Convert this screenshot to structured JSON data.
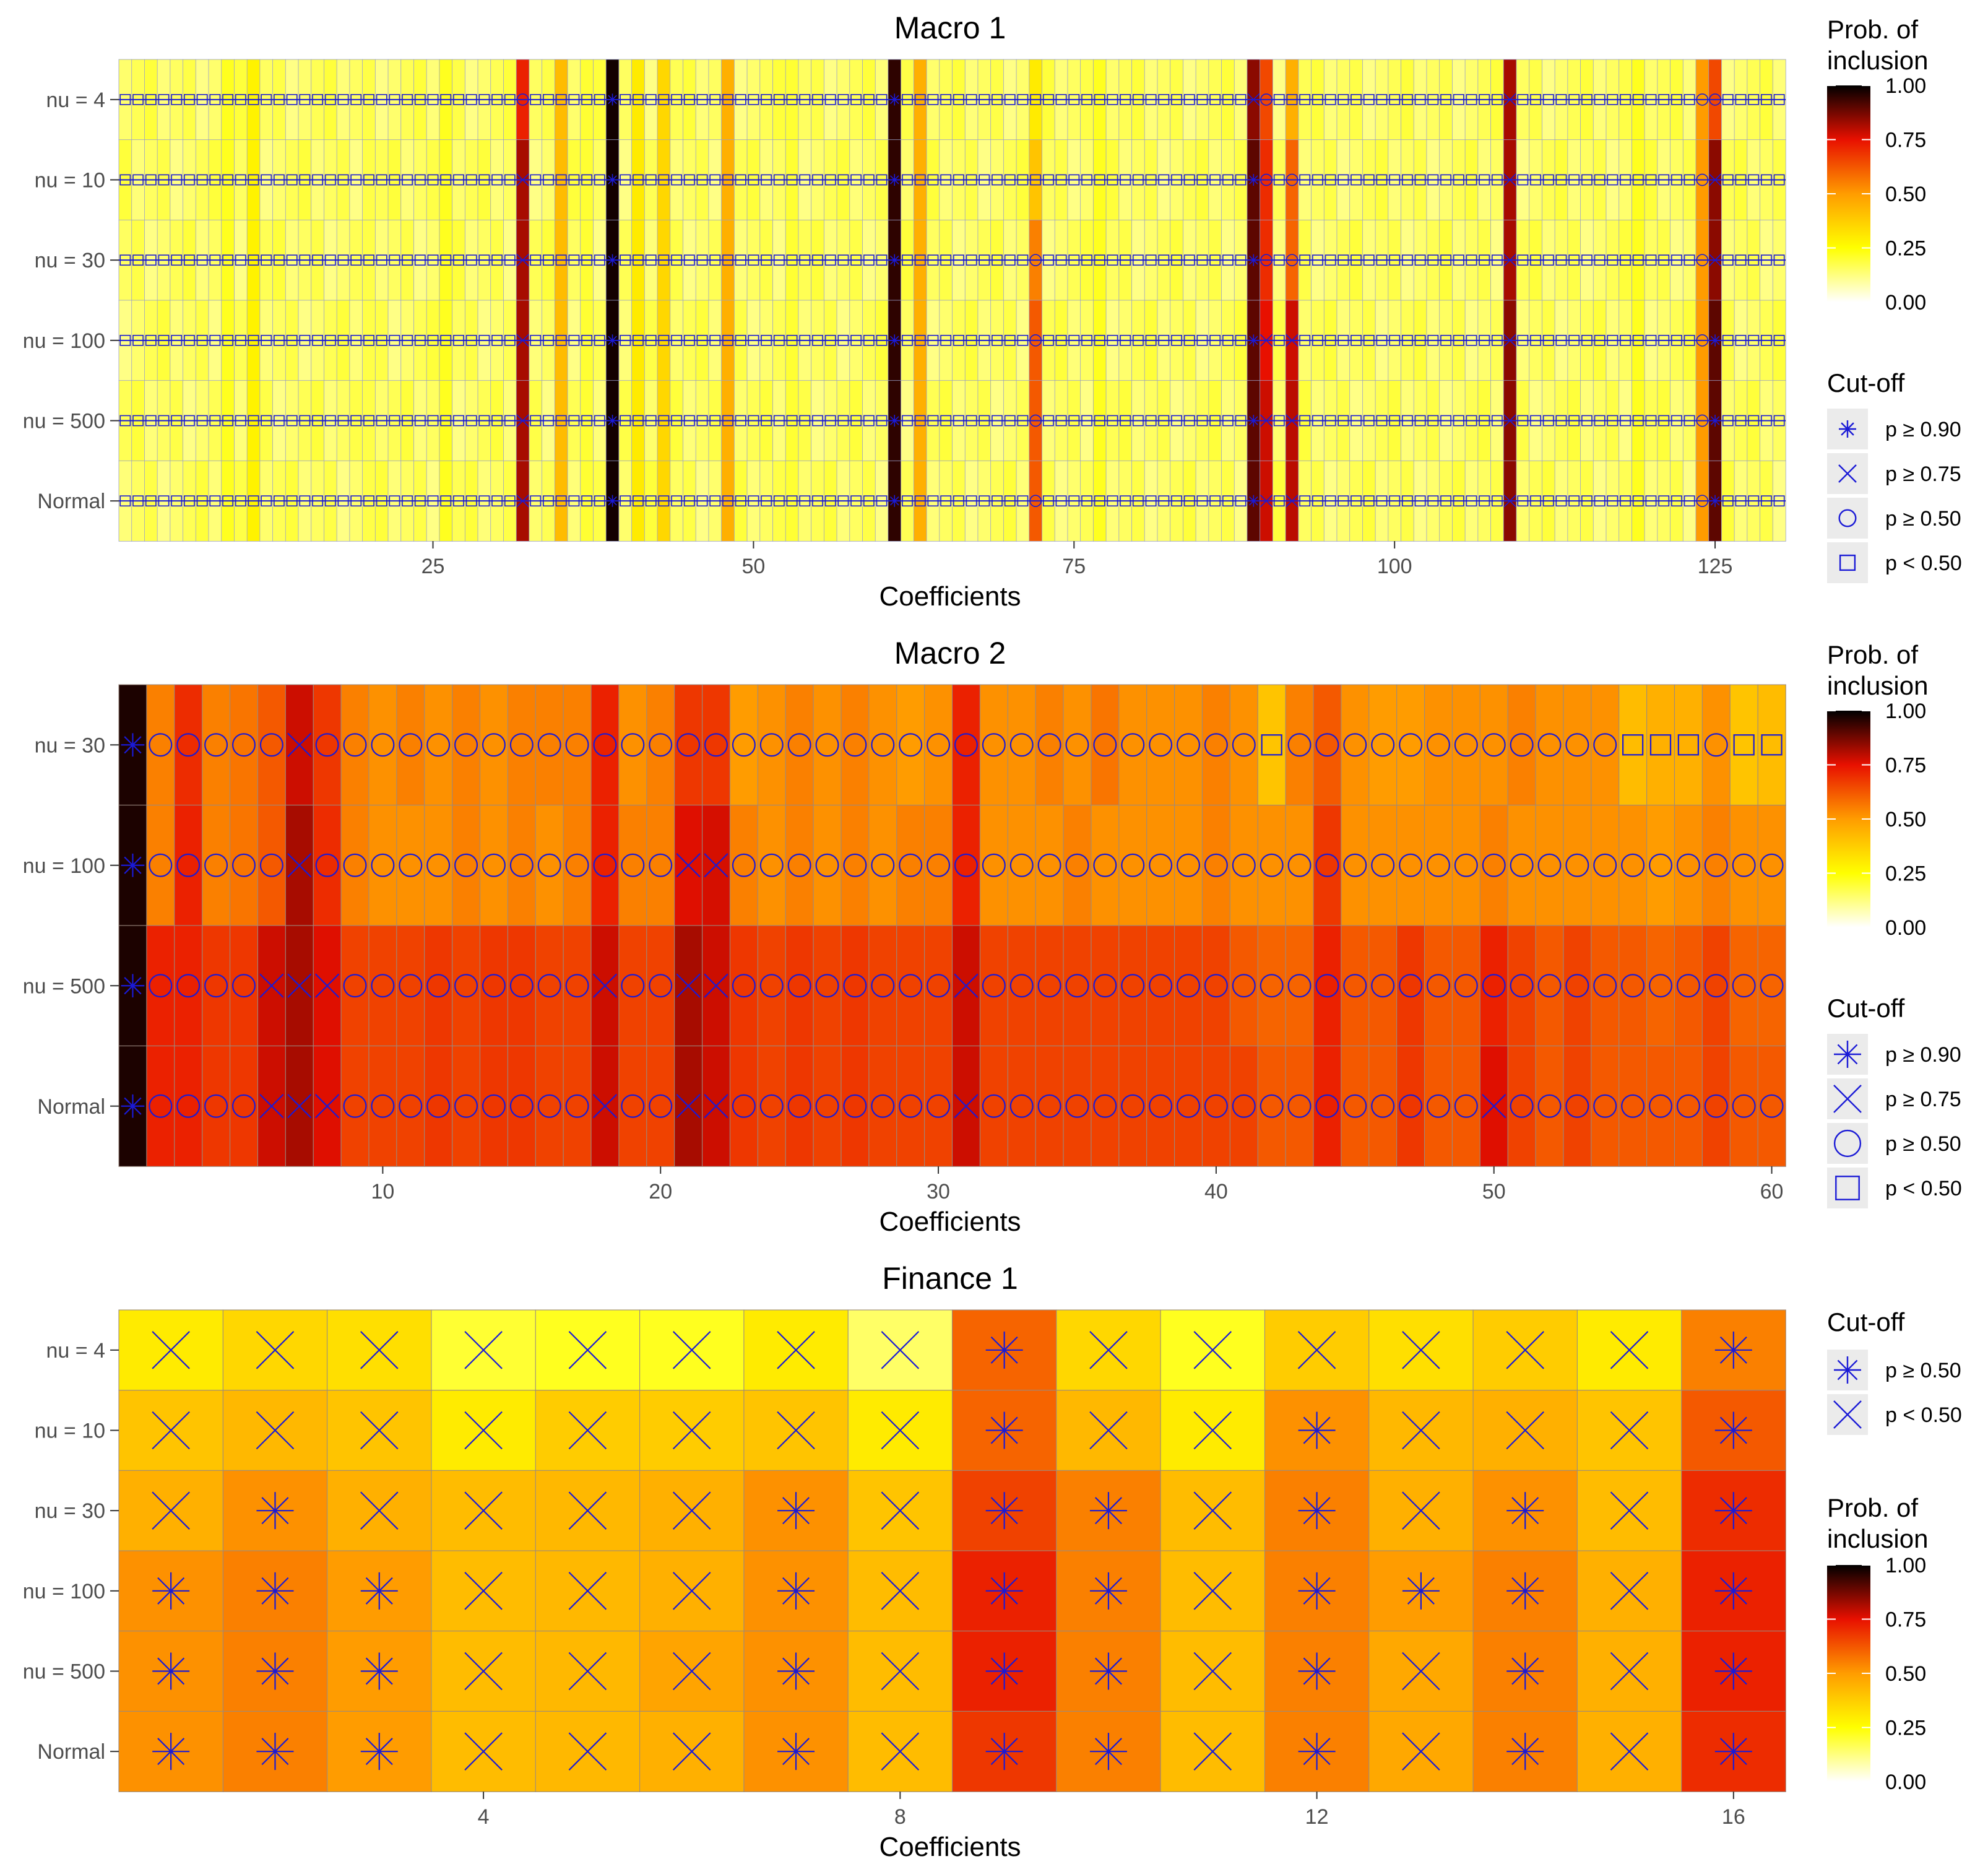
{
  "chart_data": [
    {
      "type": "heatmap",
      "title": "Macro 1",
      "xlabel": "Coefficients",
      "ylabel": "",
      "rows": [
        "nu = 4",
        "nu = 10",
        "nu = 30",
        "nu = 100",
        "nu = 500",
        "Normal"
      ],
      "n_coefficients": 130,
      "x_ticks": [
        25,
        50,
        75,
        100,
        125
      ],
      "base_probability": 0.12,
      "highlight_probabilities": {
        "9": 0.22,
        "11": 0.28,
        "20": 0.18,
        "26": 0.22,
        "32": [
          0.72,
          0.82,
          0.82,
          0.82,
          0.82,
          0.82
        ],
        "35": 0.42,
        "37": 0.2,
        "39": [
          0.98,
          0.98,
          0.98,
          0.98,
          0.98,
          0.98
        ],
        "41": 0.3,
        "43": 0.35,
        "48": 0.45,
        "53": 0.2,
        "61": [
          0.95,
          0.95,
          0.95,
          0.95,
          0.95,
          0.95
        ],
        "63": 0.45,
        "72": [
          0.3,
          0.4,
          0.55,
          0.62,
          0.62,
          0.62
        ],
        "77": 0.22,
        "89": [
          0.85,
          0.9,
          0.9,
          0.9,
          0.9,
          0.9
        ],
        "90": [
          0.65,
          0.7,
          0.7,
          0.75,
          0.78,
          0.78
        ],
        "92": [
          0.45,
          0.6,
          0.6,
          0.78,
          0.8,
          0.8
        ],
        "109": [
          0.82,
          0.82,
          0.82,
          0.85,
          0.85,
          0.85
        ],
        "119": 0.22,
        "124": 0.5,
        "125": [
          0.65,
          0.85,
          0.85,
          0.9,
          0.9,
          0.9
        ]
      },
      "legends": [
        {
          "title": "Prob. of inclusion",
          "type": "colorbar",
          "ticks": [
            "1.00",
            "0.75",
            "0.50",
            "0.25",
            "0.00"
          ]
        },
        {
          "title": "Cut-off",
          "type": "shape",
          "entries": [
            {
              "shape": "asterisk",
              "label": "p ≥ 0.90"
            },
            {
              "shape": "cross",
              "label": "p ≥ 0.75"
            },
            {
              "shape": "circle",
              "label": "p ≥ 0.50"
            },
            {
              "shape": "square",
              "label": "p < 0.50"
            }
          ]
        }
      ]
    },
    {
      "type": "heatmap",
      "title": "Macro 2",
      "xlabel": "Coefficients",
      "ylabel": "",
      "rows": [
        "nu = 30",
        "nu = 100",
        "nu = 500",
        "Normal"
      ],
      "n_coefficients": 60,
      "x_ticks": [
        10,
        20,
        30,
        40,
        50,
        60
      ],
      "probabilities": [
        [
          0.97,
          0.55,
          0.7,
          0.55,
          0.57,
          0.62,
          0.78,
          0.68,
          0.55,
          0.52,
          0.55,
          0.52,
          0.55,
          0.52,
          0.55,
          0.55,
          0.55,
          0.72,
          0.52,
          0.55,
          0.68,
          0.68,
          0.5,
          0.52,
          0.55,
          0.52,
          0.55,
          0.52,
          0.5,
          0.52,
          0.72,
          0.52,
          0.52,
          0.55,
          0.52,
          0.57,
          0.52,
          0.52,
          0.52,
          0.55,
          0.52,
          0.4,
          0.55,
          0.62,
          0.52,
          0.5,
          0.5,
          0.52,
          0.52,
          0.52,
          0.55,
          0.52,
          0.52,
          0.52,
          0.42,
          0.45,
          0.45,
          0.52,
          0.4,
          0.42
        ],
        [
          0.97,
          0.55,
          0.72,
          0.55,
          0.57,
          0.62,
          0.82,
          0.7,
          0.55,
          0.52,
          0.52,
          0.52,
          0.55,
          0.52,
          0.55,
          0.52,
          0.55,
          0.72,
          0.55,
          0.55,
          0.76,
          0.77,
          0.55,
          0.52,
          0.55,
          0.52,
          0.55,
          0.52,
          0.55,
          0.55,
          0.72,
          0.52,
          0.52,
          0.52,
          0.55,
          0.52,
          0.52,
          0.52,
          0.52,
          0.55,
          0.52,
          0.52,
          0.52,
          0.68,
          0.52,
          0.52,
          0.52,
          0.52,
          0.52,
          0.55,
          0.52,
          0.52,
          0.52,
          0.52,
          0.52,
          0.5,
          0.52,
          0.55,
          0.52,
          0.52
        ],
        [
          0.97,
          0.72,
          0.72,
          0.68,
          0.68,
          0.78,
          0.82,
          0.76,
          0.66,
          0.66,
          0.66,
          0.68,
          0.66,
          0.68,
          0.68,
          0.66,
          0.66,
          0.78,
          0.66,
          0.66,
          0.82,
          0.78,
          0.68,
          0.66,
          0.68,
          0.66,
          0.68,
          0.66,
          0.66,
          0.66,
          0.78,
          0.66,
          0.66,
          0.66,
          0.66,
          0.66,
          0.66,
          0.66,
          0.66,
          0.66,
          0.62,
          0.6,
          0.6,
          0.72,
          0.62,
          0.62,
          0.68,
          0.62,
          0.62,
          0.72,
          0.66,
          0.62,
          0.66,
          0.62,
          0.62,
          0.6,
          0.62,
          0.66,
          0.6,
          0.6
        ],
        [
          0.97,
          0.72,
          0.72,
          0.68,
          0.68,
          0.78,
          0.82,
          0.76,
          0.66,
          0.66,
          0.66,
          0.68,
          0.66,
          0.68,
          0.68,
          0.66,
          0.66,
          0.78,
          0.66,
          0.66,
          0.82,
          0.78,
          0.68,
          0.66,
          0.68,
          0.66,
          0.68,
          0.66,
          0.66,
          0.66,
          0.78,
          0.66,
          0.66,
          0.66,
          0.66,
          0.66,
          0.66,
          0.66,
          0.66,
          0.66,
          0.66,
          0.62,
          0.62,
          0.72,
          0.62,
          0.62,
          0.68,
          0.62,
          0.62,
          0.76,
          0.66,
          0.62,
          0.66,
          0.62,
          0.62,
          0.62,
          0.62,
          0.66,
          0.62,
          0.62
        ]
      ],
      "legends": [
        {
          "title": "Prob. of inclusion",
          "type": "colorbar",
          "ticks": [
            "1.00",
            "0.75",
            "0.50",
            "0.25",
            "0.00"
          ]
        },
        {
          "title": "Cut-off",
          "type": "shape",
          "entries": [
            {
              "shape": "asterisk",
              "label": "p ≥ 0.90"
            },
            {
              "shape": "cross",
              "label": "p ≥ 0.75"
            },
            {
              "shape": "circle",
              "label": "p ≥ 0.50"
            },
            {
              "shape": "square",
              "label": "p < 0.50"
            }
          ]
        }
      ]
    },
    {
      "type": "heatmap",
      "title": "Finance 1",
      "xlabel": "Coefficients",
      "ylabel": "",
      "rows": [
        "nu = 4",
        "nu = 10",
        "nu = 30",
        "nu = 100",
        "nu = 500",
        "Normal"
      ],
      "n_coefficients": 16,
      "x_ticks": [
        4,
        8,
        12,
        16
      ],
      "probabilities": [
        [
          0.3,
          0.35,
          0.33,
          0.2,
          0.22,
          0.22,
          0.3,
          0.15,
          0.6,
          0.35,
          0.22,
          0.38,
          0.33,
          0.38,
          0.3,
          0.55
        ],
        [
          0.4,
          0.43,
          0.4,
          0.3,
          0.38,
          0.38,
          0.4,
          0.3,
          0.6,
          0.43,
          0.3,
          0.52,
          0.43,
          0.45,
          0.4,
          0.62
        ],
        [
          0.45,
          0.52,
          0.45,
          0.42,
          0.43,
          0.45,
          0.52,
          0.4,
          0.66,
          0.55,
          0.42,
          0.55,
          0.45,
          0.52,
          0.42,
          0.7
        ],
        [
          0.52,
          0.55,
          0.5,
          0.42,
          0.43,
          0.45,
          0.52,
          0.42,
          0.72,
          0.55,
          0.42,
          0.55,
          0.5,
          0.55,
          0.45,
          0.72
        ],
        [
          0.52,
          0.55,
          0.5,
          0.42,
          0.43,
          0.48,
          0.52,
          0.42,
          0.72,
          0.55,
          0.42,
          0.55,
          0.47,
          0.55,
          0.45,
          0.72
        ],
        [
          0.52,
          0.55,
          0.5,
          0.42,
          0.43,
          0.45,
          0.52,
          0.42,
          0.68,
          0.55,
          0.42,
          0.55,
          0.47,
          0.55,
          0.45,
          0.7
        ]
      ],
      "legends": [
        {
          "title": "Cut-off",
          "type": "shape",
          "entries": [
            {
              "shape": "asterisk",
              "label": "p ≥ 0.50"
            },
            {
              "shape": "cross",
              "label": "p < 0.50"
            }
          ]
        },
        {
          "title": "Prob. of inclusion",
          "type": "colorbar",
          "ticks": [
            "1.00",
            "0.75",
            "0.50",
            "0.25",
            "0.00"
          ]
        }
      ]
    }
  ]
}
